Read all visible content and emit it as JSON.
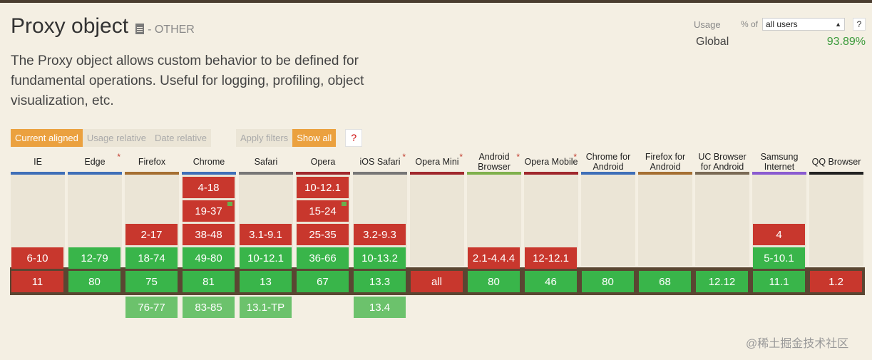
{
  "feature": {
    "title": "Proxy object",
    "status": "- OTHER",
    "description": "The Proxy object allows custom behavior to be defined for fundamental operations. Useful for logging, profiling, object visualization, etc."
  },
  "usage": {
    "label": "Usage",
    "pct_of": "% of",
    "selected_users": "all users",
    "help": "?",
    "region": "Global",
    "percent": "93.89%"
  },
  "filters": {
    "current_aligned": "Current aligned",
    "usage_relative": "Usage relative",
    "date_relative": "Date relative",
    "apply_filters": "Apply filters",
    "show_all": "Show all",
    "help": "?"
  },
  "colors": {
    "supported": "#39b54a",
    "unsupported": "#c8372d",
    "future": "#6cc26c",
    "accent": "#eba13f"
  },
  "browsers": [
    {
      "name": "IE",
      "star": false,
      "color": "#3f6fb8",
      "past": [
        {
          "v": "6-10",
          "s": "n"
        }
      ],
      "current": {
        "v": "11",
        "s": "n"
      },
      "future": []
    },
    {
      "name": "Edge",
      "star": true,
      "color": "#3f6fb8",
      "past": [
        {
          "v": "12-79",
          "s": "y"
        }
      ],
      "current": {
        "v": "80",
        "s": "y"
      },
      "future": []
    },
    {
      "name": "Firefox",
      "star": false,
      "color": "#a56f32",
      "past": [
        {
          "v": "2-17",
          "s": "n"
        },
        {
          "v": "18-74",
          "s": "y"
        }
      ],
      "current": {
        "v": "75",
        "s": "y"
      },
      "future": [
        {
          "v": "76-77",
          "s": "f"
        }
      ]
    },
    {
      "name": "Chrome",
      "star": false,
      "color": "#3f6fb8",
      "past": [
        {
          "v": "4-18",
          "s": "n"
        },
        {
          "v": "19-37",
          "s": "n",
          "flag": true
        },
        {
          "v": "38-48",
          "s": "n"
        },
        {
          "v": "49-80",
          "s": "y"
        }
      ],
      "current": {
        "v": "81",
        "s": "y"
      },
      "future": [
        {
          "v": "83-85",
          "s": "f"
        }
      ]
    },
    {
      "name": "Safari",
      "star": false,
      "color": "#777777",
      "past": [
        {
          "v": "3.1-9.1",
          "s": "n"
        },
        {
          "v": "10-12.1",
          "s": "y"
        }
      ],
      "current": {
        "v": "13",
        "s": "y"
      },
      "future": [
        {
          "v": "13.1-TP",
          "s": "f"
        }
      ]
    },
    {
      "name": "Opera",
      "star": false,
      "color": "#a0282d",
      "past": [
        {
          "v": "10-12.1",
          "s": "n"
        },
        {
          "v": "15-24",
          "s": "n",
          "flag": true
        },
        {
          "v": "25-35",
          "s": "n"
        },
        {
          "v": "36-66",
          "s": "y"
        }
      ],
      "current": {
        "v": "67",
        "s": "y"
      },
      "future": []
    },
    {
      "name": "iOS Safari",
      "star": true,
      "color": "#777777",
      "past": [
        {
          "v": "3.2-9.3",
          "s": "n"
        },
        {
          "v": "10-13.2",
          "s": "y"
        }
      ],
      "current": {
        "v": "13.3",
        "s": "y"
      },
      "future": [
        {
          "v": "13.4",
          "s": "f"
        }
      ]
    },
    {
      "name": "Opera Mini",
      "star": true,
      "color": "#a0282d",
      "past": [],
      "current": {
        "v": "all",
        "s": "n"
      },
      "future": []
    },
    {
      "name": "Android Browser",
      "star": true,
      "color": "#7fb04c",
      "past": [
        {
          "v": "2.1-4.4.4",
          "s": "n"
        }
      ],
      "current": {
        "v": "80",
        "s": "y"
      },
      "future": []
    },
    {
      "name": "Opera Mobile",
      "star": true,
      "color": "#a0282d",
      "past": [
        {
          "v": "12-12.1",
          "s": "n"
        }
      ],
      "current": {
        "v": "46",
        "s": "y"
      },
      "future": []
    },
    {
      "name": "Chrome for Android",
      "star": false,
      "color": "#3f6fb8",
      "past": [],
      "current": {
        "v": "80",
        "s": "y"
      },
      "future": []
    },
    {
      "name": "Firefox for Android",
      "star": false,
      "color": "#a56f32",
      "past": [],
      "current": {
        "v": "68",
        "s": "y"
      },
      "future": []
    },
    {
      "name": "UC Browser for Android",
      "star": false,
      "color": "#7a6a55",
      "past": [],
      "current": {
        "v": "12.12",
        "s": "y"
      },
      "future": []
    },
    {
      "name": "Samsung Internet",
      "star": false,
      "color": "#8a5bd0",
      "past": [
        {
          "v": "4",
          "s": "n"
        },
        {
          "v": "5-10.1",
          "s": "y"
        }
      ],
      "current": {
        "v": "11.1",
        "s": "y"
      },
      "future": []
    },
    {
      "name": "QQ Browser",
      "star": false,
      "color": "#222222",
      "past": [],
      "current": {
        "v": "1.2",
        "s": "n"
      },
      "future": []
    }
  ],
  "watermark": "@稀土掘金技术社区"
}
